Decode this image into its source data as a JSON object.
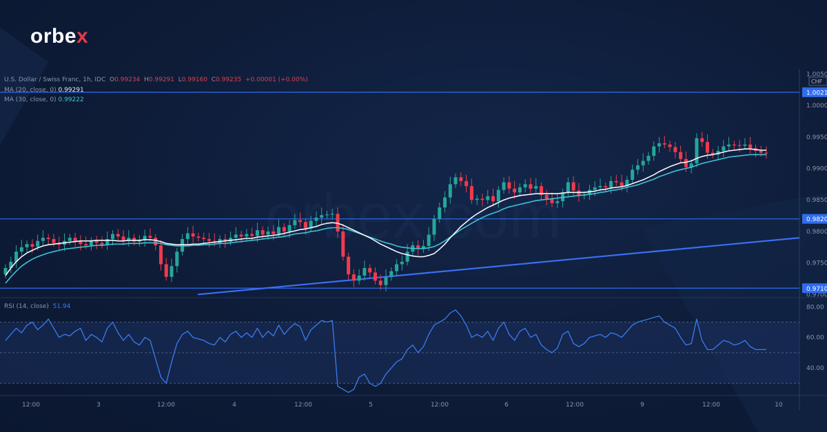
{
  "brand": {
    "logo_main": "orbe",
    "logo_x": "x",
    "watermark": "orbex.com"
  },
  "header": {
    "symbol": "U.S. Dollar / Swiss Franc, 1h, IDC",
    "ohlc": {
      "o_label": "O",
      "o": "0.99234",
      "h_label": "H",
      "h": "0.99291",
      "l_label": "L",
      "l": "0.99160",
      "c_label": "C",
      "c": "0.99235",
      "change": "+0.00001 (+0.00%)"
    },
    "ma20": {
      "label": "MA (20, close, 0)",
      "value": "0.99291"
    },
    "ma30": {
      "label": "MA (30, close, 0)",
      "value": "0.99222"
    },
    "rsi": {
      "label": "RSI (14, close)",
      "value": "51.94"
    }
  },
  "colors": {
    "up": "#26a69a",
    "down": "#ef3b4d",
    "ma20": "#f5f7fa",
    "ma30": "#3fc3d6",
    "level": "#2f6df0",
    "trend": "#3b6ff2",
    "rsi": "#3b7cf0"
  },
  "chart_data": {
    "type": "candlestick",
    "symbol": "USDCHF",
    "timeframe": "1h",
    "currency": "CHF",
    "price_axis": {
      "ticks": [
        "1.0050",
        "1.0000",
        "0.9950",
        "0.9900",
        "0.9850",
        "0.9800",
        "0.9750",
        "0.9700"
      ],
      "range": [
        0.9695,
        1.0058
      ]
    },
    "levels": [
      {
        "price": 1.0021,
        "label": "1.0021"
      },
      {
        "price": 0.982,
        "label": "0.9820"
      },
      {
        "price": 0.971,
        "label": "0.9710"
      }
    ],
    "time_axis": [
      "12:00",
      "3",
      "12:00",
      "4",
      "12:00",
      "5",
      "12:00",
      "6",
      "12:00",
      "9",
      "12:00",
      "10"
    ],
    "close": [
      0.9742,
      0.9752,
      0.9768,
      0.9775,
      0.978,
      0.9776,
      0.9785,
      0.979,
      0.9788,
      0.9782,
      0.9779,
      0.9785,
      0.979,
      0.9784,
      0.978,
      0.9778,
      0.9785,
      0.9782,
      0.9779,
      0.9788,
      0.9796,
      0.9792,
      0.9786,
      0.979,
      0.9784,
      0.9786,
      0.9793,
      0.979,
      0.9778,
      0.9748,
      0.9728,
      0.9745,
      0.9768,
      0.9788,
      0.9797,
      0.9792,
      0.979,
      0.9788,
      0.9785,
      0.9782,
      0.9788,
      0.9784,
      0.979,
      0.9795,
      0.9792,
      0.9796,
      0.9793,
      0.9802,
      0.9795,
      0.98,
      0.9796,
      0.9807,
      0.98,
      0.981,
      0.9818,
      0.9815,
      0.9805,
      0.9817,
      0.9822,
      0.9826,
      0.9827,
      0.9828,
      0.98,
      0.976,
      0.9732,
      0.9722,
      0.973,
      0.9742,
      0.9735,
      0.9722,
      0.9715,
      0.9728,
      0.9737,
      0.9748,
      0.9752,
      0.9768,
      0.9778,
      0.9772,
      0.9777,
      0.9795,
      0.982,
      0.9838,
      0.9854,
      0.9875,
      0.9886,
      0.988,
      0.9872,
      0.985,
      0.9852,
      0.985,
      0.9856,
      0.9848,
      0.9866,
      0.9878,
      0.9868,
      0.9862,
      0.987,
      0.9875,
      0.9868,
      0.9872,
      0.9858,
      0.9852,
      0.9845,
      0.9848,
      0.9862,
      0.9878,
      0.9865,
      0.9857,
      0.9858,
      0.9866,
      0.987,
      0.9872,
      0.987,
      0.988,
      0.9878,
      0.9872,
      0.9882,
      0.9898,
      0.9905,
      0.9912,
      0.992,
      0.9935,
      0.994,
      0.9938,
      0.9934,
      0.9926,
      0.9915,
      0.9902,
      0.9908,
      0.9948,
      0.9942,
      0.9925,
      0.9922,
      0.9928,
      0.9935,
      0.9938,
      0.9937,
      0.9936,
      0.9938,
      0.9932,
      0.9928,
      0.9925,
      0.9924
    ],
    "ma20_approx": [
      0.973,
      0.9742,
      0.9752,
      0.976,
      0.9766,
      0.977,
      0.9774,
      0.9777,
      0.9779,
      0.978,
      0.9781,
      0.9782,
      0.9783,
      0.9784,
      0.9785,
      0.9785,
      0.9785,
      0.9786,
      0.9786,
      0.9786,
      0.9786,
      0.9785,
      0.9785,
      0.9786,
      0.9786,
      0.9786,
      0.9787,
      0.9787,
      0.9786,
      0.9784,
      0.9781,
      0.978,
      0.9779,
      0.9779,
      0.9779,
      0.978,
      0.978,
      0.9781,
      0.9782,
      0.9783,
      0.9784,
      0.9785,
      0.9786,
      0.9787,
      0.9788,
      0.9789,
      0.9789,
      0.9791,
      0.9792,
      0.9793,
      0.9794,
      0.9795,
      0.9797,
      0.9799,
      0.9801,
      0.9803,
      0.9804,
      0.9806,
      0.9808,
      0.9811,
      0.9813,
      0.9814,
      0.9813,
      0.981,
      0.9806,
      0.9802,
      0.9798,
      0.9794,
      0.979,
      0.9785,
      0.978,
      0.9776,
      0.9772,
      0.9768,
      0.9765,
      0.9763,
      0.9761,
      0.976,
      0.976,
      0.9762,
      0.9765,
      0.9772,
      0.978,
      0.979,
      0.9799,
      0.9808,
      0.9815,
      0.9822,
      0.9828,
      0.9833,
      0.9838,
      0.9842,
      0.9846,
      0.985,
      0.9853,
      0.9855,
      0.9857,
      0.9858,
      0.9859,
      0.986,
      0.986,
      0.986,
      0.986,
      0.986,
      0.9861,
      0.9862,
      0.9862,
      0.9862,
      0.9862,
      0.9863,
      0.9864,
      0.9866,
      0.9867,
      0.9869,
      0.987,
      0.9871,
      0.9873,
      0.9876,
      0.9879,
      0.9882,
      0.9886,
      0.989,
      0.9895,
      0.9899,
      0.9903,
      0.9906,
      0.9909,
      0.991,
      0.9912,
      0.9916,
      0.9919,
      0.9921,
      0.9922,
      0.9924,
      0.9926,
      0.9928,
      0.9929,
      0.993,
      0.9931,
      0.9931,
      0.993,
      0.9929,
      0.9929
    ],
    "ma30_approx": [
      0.9718,
      0.9728,
      0.9737,
      0.9745,
      0.9751,
      0.9756,
      0.976,
      0.9763,
      0.9766,
      0.9768,
      0.977,
      0.9772,
      0.9773,
      0.9774,
      0.9775,
      0.9776,
      0.9777,
      0.9778,
      0.9778,
      0.9779,
      0.978,
      0.978,
      0.978,
      0.9781,
      0.9781,
      0.9781,
      0.9782,
      0.9782,
      0.9782,
      0.9781,
      0.9779,
      0.9778,
      0.9777,
      0.9777,
      0.9777,
      0.9778,
      0.9778,
      0.9779,
      0.9779,
      0.978,
      0.9781,
      0.9781,
      0.9782,
      0.9783,
      0.9784,
      0.9785,
      0.9786,
      0.9787,
      0.9788,
      0.9789,
      0.979,
      0.9791,
      0.9792,
      0.9794,
      0.9796,
      0.9797,
      0.9798,
      0.98,
      0.9801,
      0.9803,
      0.9805,
      0.9806,
      0.9806,
      0.9805,
      0.9803,
      0.98,
      0.9797,
      0.9794,
      0.9791,
      0.9788,
      0.9785,
      0.9782,
      0.978,
      0.9777,
      0.9775,
      0.9774,
      0.9773,
      0.9773,
      0.9773,
      0.9774,
      0.9776,
      0.978,
      0.9785,
      0.9791,
      0.9797,
      0.9803,
      0.9808,
      0.9813,
      0.9818,
      0.9822,
      0.9826,
      0.9829,
      0.9832,
      0.9836,
      0.9839,
      0.9841,
      0.9843,
      0.9845,
      0.9847,
      0.9849,
      0.985,
      0.9851,
      0.9852,
      0.9853,
      0.9854,
      0.9855,
      0.9856,
      0.9857,
      0.9858,
      0.9859,
      0.986,
      0.9862,
      0.9863,
      0.9865,
      0.9866,
      0.9868,
      0.987,
      0.9872,
      0.9874,
      0.9877,
      0.988,
      0.9883,
      0.9887,
      0.989,
      0.9893,
      0.9896,
      0.9898,
      0.99,
      0.9902,
      0.9905,
      0.9908,
      0.991,
      0.9912,
      0.9914,
      0.9916,
      0.9918,
      0.9919,
      0.992,
      0.9921,
      0.9922,
      0.9922,
      0.9922,
      0.9922
    ],
    "trendline": [
      [
        0.97,
        25
      ],
      [
        0.979,
        140
      ]
    ],
    "rsi": {
      "ticks": [
        "80.00",
        "60.00",
        "40.00"
      ],
      "range": [
        22,
        86
      ],
      "overbought": 70,
      "mid": 50,
      "oversold": 30,
      "values": [
        58,
        62,
        66,
        63,
        68,
        70,
        65,
        68,
        72,
        66,
        60,
        62,
        61,
        64,
        66,
        58,
        62,
        60,
        57,
        66,
        70,
        63,
        58,
        62,
        57,
        55,
        60,
        58,
        46,
        34,
        30,
        44,
        56,
        62,
        64,
        60,
        59,
        58,
        56,
        55,
        60,
        57,
        62,
        64,
        60,
        63,
        60,
        66,
        60,
        64,
        61,
        68,
        62,
        66,
        69,
        67,
        58,
        65,
        68,
        71,
        70,
        71,
        28,
        26,
        24,
        26,
        34,
        36,
        30,
        28,
        30,
        36,
        40,
        44,
        46,
        52,
        55,
        50,
        54,
        62,
        68,
        70,
        72,
        76,
        78,
        74,
        68,
        60,
        62,
        60,
        64,
        58,
        66,
        70,
        62,
        58,
        64,
        66,
        60,
        62,
        55,
        52,
        50,
        53,
        62,
        64,
        56,
        54,
        56,
        60,
        61,
        62,
        60,
        63,
        62,
        60,
        64,
        68,
        70,
        71,
        72,
        73,
        74,
        70,
        68,
        66,
        60,
        55,
        56,
        72,
        58,
        52,
        52,
        55,
        58,
        57,
        55,
        56,
        58,
        54,
        52,
        52,
        52
      ]
    }
  },
  "rsi_ticks_labels": {
    "a": "80.00",
    "b": "60.00",
    "c": "40.00"
  }
}
